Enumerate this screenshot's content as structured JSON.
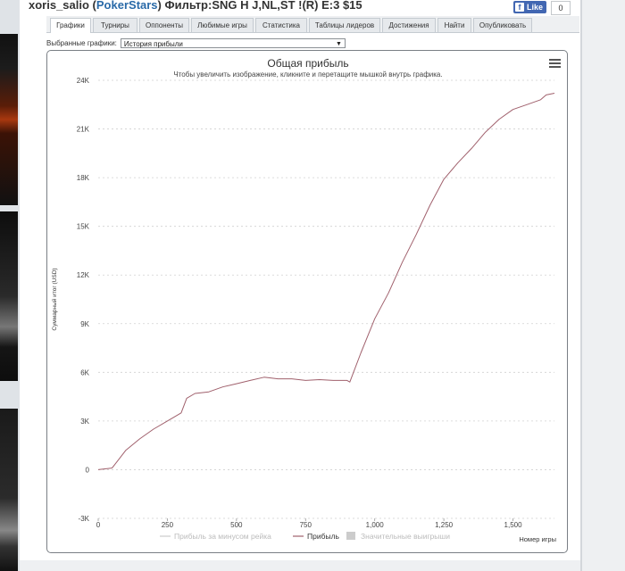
{
  "header": {
    "user": "xoris_salio",
    "site": "PokerStars",
    "filter_text": "Фильтр:SNG H J,NL,ST !(R) E:3 $15"
  },
  "facebook": {
    "like_label": "Like",
    "count": "0"
  },
  "tabs": [
    {
      "label": "Графики",
      "active": true
    },
    {
      "label": "Турниры"
    },
    {
      "label": "Оппоненты"
    },
    {
      "label": "Любимые игры"
    },
    {
      "label": "Статистика"
    },
    {
      "label": "Таблицы лидеров"
    },
    {
      "label": "Достижения"
    },
    {
      "label": "Найти"
    },
    {
      "label": "Опубликовать"
    }
  ],
  "graph_select": {
    "label": "Выбранные графики:",
    "value": "История прибыли"
  },
  "chart_data": {
    "type": "line",
    "title": "Общая прибыль",
    "subtitle": "Чтобы увеличить изображение, кликните и перетащите мышкой внутрь графика.",
    "ylabel": "Суммарный итог (USD)",
    "xlabel": "Номер игры",
    "xlim": [
      0,
      1650
    ],
    "ylim": [
      -3000,
      24000
    ],
    "x_ticks": [
      0,
      250,
      500,
      750,
      1000,
      1250,
      1500
    ],
    "x_tick_labels": [
      "0",
      "250",
      "500",
      "750",
      "1,000",
      "1,250",
      "1,500"
    ],
    "y_ticks": [
      -3000,
      0,
      3000,
      6000,
      9000,
      12000,
      15000,
      18000,
      21000,
      24000
    ],
    "y_tick_labels": [
      "-3K",
      "0",
      "3K",
      "6K",
      "9K",
      "12K",
      "15K",
      "18K",
      "21K",
      "24K"
    ],
    "grid": true,
    "legend": "bottom",
    "legend_items": [
      {
        "name": "Прибыль за минусом рейка",
        "color": "#cccccc",
        "shape": "line"
      },
      {
        "name": "Прибыль",
        "color": "#a0606c",
        "shape": "line"
      },
      {
        "name": "Значительные выигрыши",
        "color": "#cccccc",
        "shape": "square"
      }
    ],
    "series": [
      {
        "name": "Прибыль",
        "color": "#a0606c",
        "x": [
          0,
          50,
          100,
          150,
          200,
          250,
          300,
          320,
          350,
          400,
          450,
          500,
          550,
          600,
          650,
          700,
          750,
          800,
          850,
          900,
          910,
          950,
          1000,
          1050,
          1100,
          1150,
          1200,
          1250,
          1300,
          1350,
          1400,
          1450,
          1500,
          1550,
          1600,
          1620,
          1650
        ],
        "y": [
          0,
          100,
          1200,
          1900,
          2500,
          3000,
          3500,
          4400,
          4700,
          4800,
          5100,
          5300,
          5500,
          5700,
          5600,
          5600,
          5500,
          5550,
          5500,
          5500,
          5400,
          7200,
          9300,
          10900,
          12800,
          14500,
          16300,
          17900,
          18900,
          19800,
          20800,
          21600,
          22200,
          22500,
          22800,
          23100,
          23200
        ]
      }
    ]
  }
}
